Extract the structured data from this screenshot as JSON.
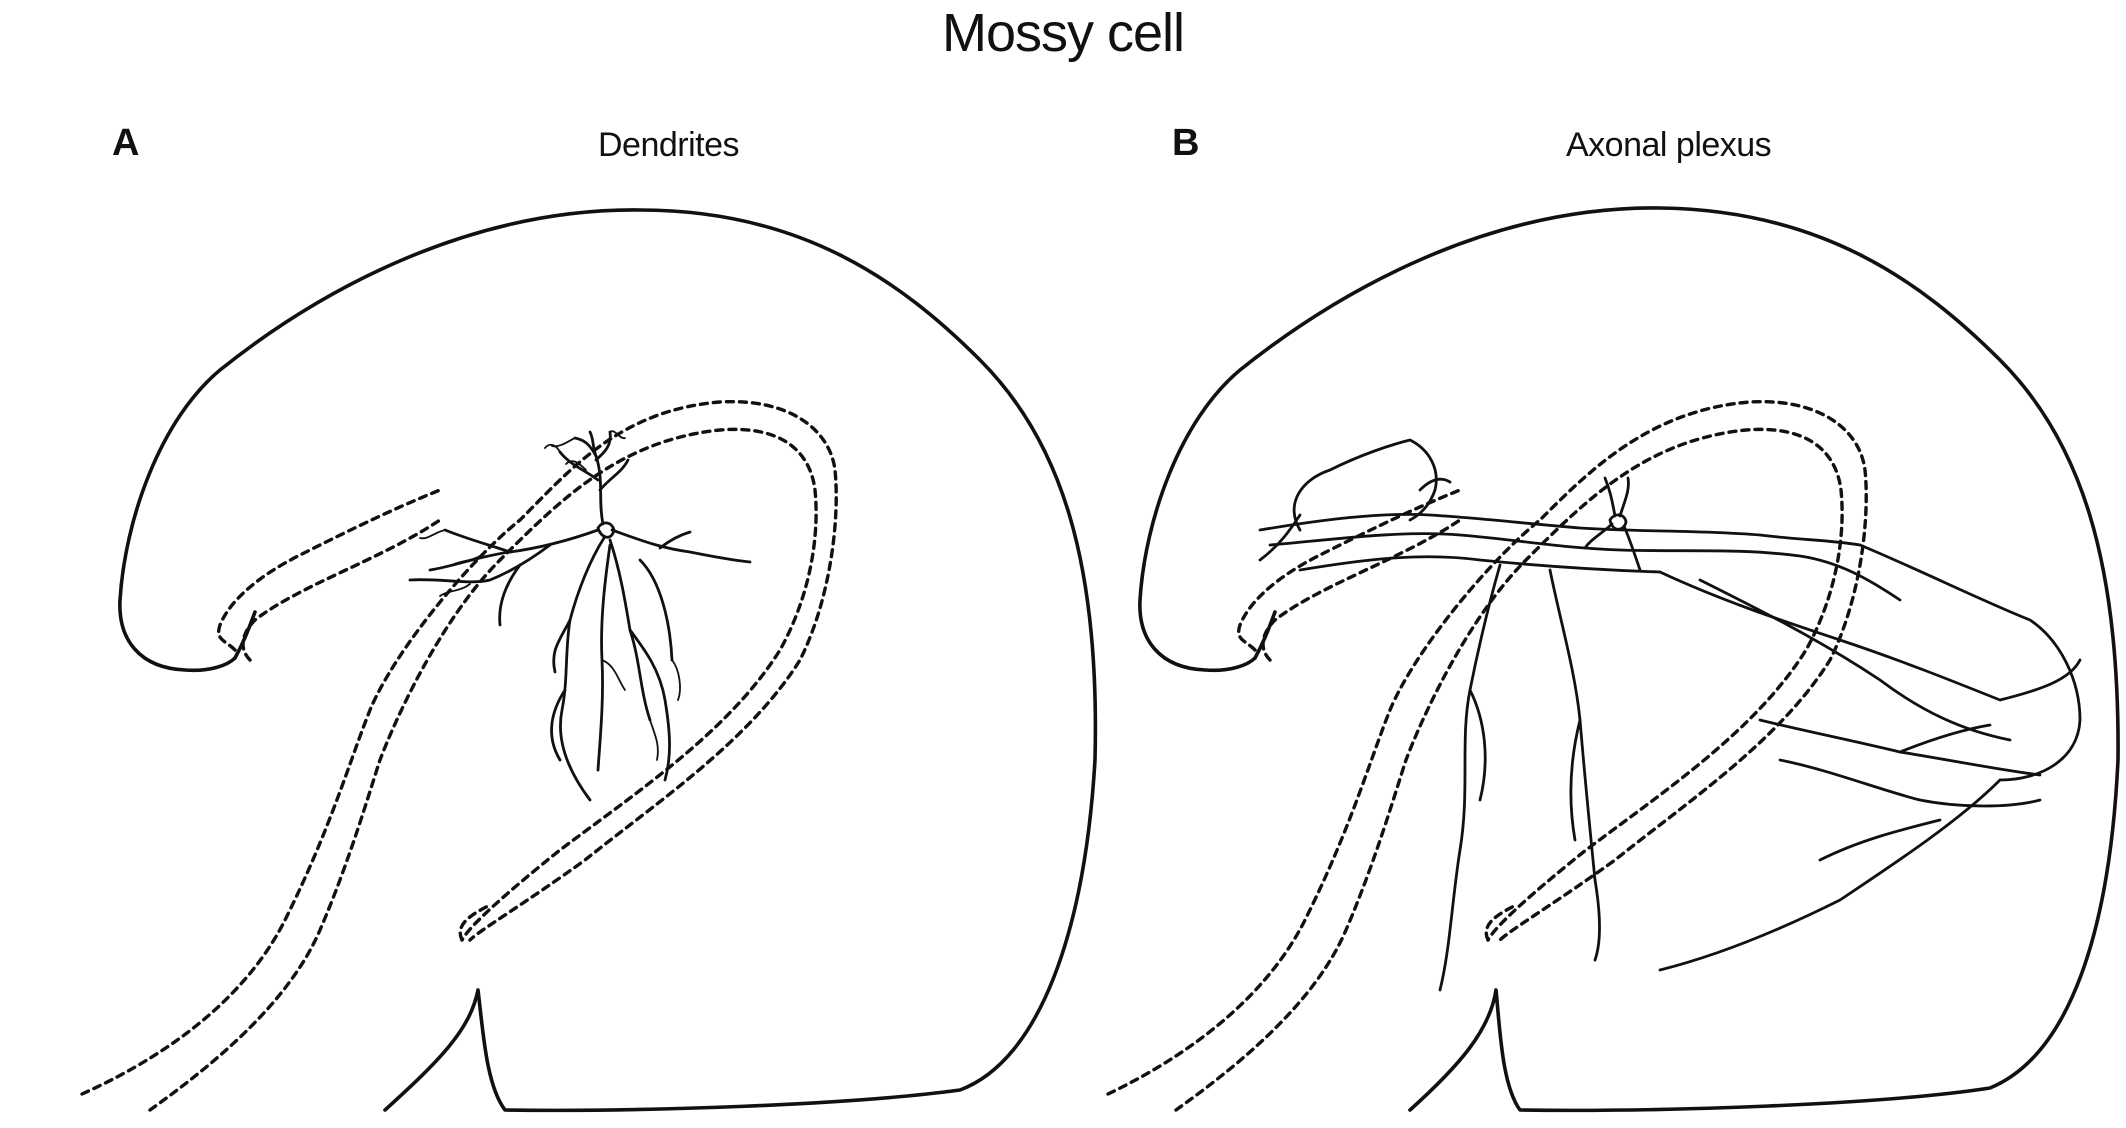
{
  "figure": {
    "title": "Mossy cell",
    "panels": [
      {
        "letter": "A",
        "subtitle": "Dendrites"
      },
      {
        "letter": "B",
        "subtitle": "Axonal plexus"
      }
    ]
  }
}
